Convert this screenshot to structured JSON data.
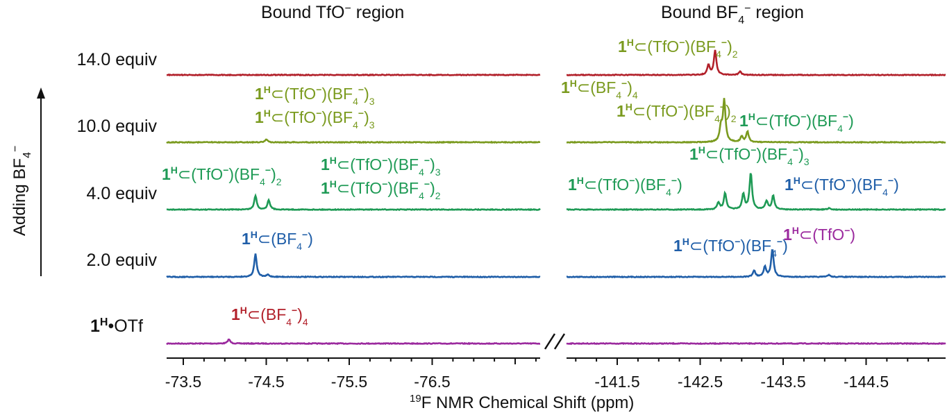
{
  "chart_data": {
    "type": "line",
    "title": "",
    "xlabel": "19F NMR Chemical Shift (ppm)",
    "xlabel_parts": {
      "sup": "19",
      "text": "F NMR Chemical Shift (ppm)"
    },
    "ylabel": "Adding BF4−",
    "ylabel_parts": {
      "text": "Adding BF",
      "sub": "4",
      "sup": "−"
    },
    "axis_break": true,
    "x_reversed": true,
    "panels": [
      {
        "name": "Bound TfO⁻ region",
        "title_parts": {
          "text": "Bound TfO",
          "sup": "−",
          "after": " region"
        },
        "xlim": [
          -72.8,
          -77.8
        ],
        "ticks": [
          -73.5,
          -74.5,
          -75.5,
          -76.5
        ],
        "tick_labels": [
          "-73.5",
          "-74.5",
          "-75.5",
          "-76.5"
        ]
      },
      {
        "name": "Bound BF₄⁻ region",
        "title_parts": {
          "text": "Bound BF",
          "sub": "4",
          "sup": "−",
          "after": " region"
        },
        "xlim": [
          -140.8,
          -145.0
        ],
        "ticks": [
          -141.5,
          -142.5,
          -143.5,
          -144.5
        ],
        "tick_labels": [
          "-141.5",
          "-142.5",
          "-143.5",
          "-144.5"
        ]
      }
    ],
    "series": [
      {
        "name": "1H•OTf",
        "label_parts": {
          "bold": "1",
          "sup": "H",
          "text": "•OTf"
        },
        "color": "#9b2a9e",
        "peaks": [
          {
            "panel": 0,
            "x": -74.05,
            "height": 0.06
          },
          {
            "panel": 1,
            "x": -141.0,
            "height": 0.0
          }
        ]
      },
      {
        "name": "2.0 equiv",
        "color": "#1f5ea8",
        "peaks": [
          {
            "panel": 0,
            "x": -74.37,
            "height": 0.33
          },
          {
            "panel": 0,
            "x": -74.52,
            "height": 0.03
          },
          {
            "panel": 1,
            "x": -143.15,
            "height": 0.09
          },
          {
            "panel": 1,
            "x": -143.28,
            "height": 0.14
          },
          {
            "panel": 1,
            "x": -143.37,
            "height": 0.4
          },
          {
            "panel": 1,
            "x": -144.05,
            "height": 0.03
          }
        ]
      },
      {
        "name": "4.0 equiv",
        "color": "#1e9a55",
        "peaks": [
          {
            "panel": 0,
            "x": -74.37,
            "height": 0.2
          },
          {
            "panel": 0,
            "x": -74.53,
            "height": 0.14
          },
          {
            "panel": 1,
            "x": -142.72,
            "height": 0.1
          },
          {
            "panel": 1,
            "x": -142.8,
            "height": 0.24
          },
          {
            "panel": 1,
            "x": -143.02,
            "height": 0.22
          },
          {
            "panel": 1,
            "x": -143.11,
            "height": 0.53
          },
          {
            "panel": 1,
            "x": -143.3,
            "height": 0.12
          },
          {
            "panel": 1,
            "x": -143.38,
            "height": 0.2
          },
          {
            "panel": 1,
            "x": -144.05,
            "height": 0.02
          }
        ]
      },
      {
        "name": "10.0 equiv",
        "color": "#7a9a1e",
        "peaks": [
          {
            "panel": 0,
            "x": -74.5,
            "height": 0.04
          },
          {
            "panel": 1,
            "x": -142.75,
            "height": 0.21
          },
          {
            "panel": 1,
            "x": -142.79,
            "height": 0.6
          },
          {
            "panel": 1,
            "x": -143.0,
            "height": 0.08
          },
          {
            "panel": 1,
            "x": -143.07,
            "height": 0.15
          }
        ]
      },
      {
        "name": "14.0 equiv",
        "color": "#b2202a",
        "peaks": [
          {
            "panel": 1,
            "x": -142.6,
            "height": 0.14
          },
          {
            "panel": 1,
            "x": -142.68,
            "height": 0.35
          },
          {
            "panel": 1,
            "x": -142.98,
            "height": 0.05
          }
        ]
      }
    ],
    "annotations": [
      {
        "series": 4,
        "panel": 1,
        "x": -142.32,
        "text": "1H⊂(BF4−)4",
        "parts": [
          [
            "b",
            "1"
          ],
          [
            "sup",
            "H"
          ],
          [
            "t",
            "⊂(BF"
          ],
          [
            "sub",
            "4"
          ],
          [
            "sup",
            "−"
          ],
          [
            "t",
            ")"
          ],
          [
            "sub",
            "4"
          ]
        ]
      },
      {
        "series": 3,
        "panel": 0,
        "x": -74.05,
        "text": "1H⊂(TfO−)(BF4−)2",
        "parts": [
          [
            "b",
            "1"
          ],
          [
            "sup",
            "H"
          ],
          [
            "t",
            "⊂(TfO"
          ],
          [
            "sup",
            "−"
          ],
          [
            "t",
            ")(BF"
          ],
          [
            "sub",
            "4"
          ],
          [
            "sup",
            "−"
          ],
          [
            "t",
            ")"
          ],
          [
            "sub",
            "2"
          ]
        ]
      },
      {
        "series": 3,
        "panel": 0,
        "x": -74.05,
        "text": "1H⊂(TfO−)(BF4−)3",
        "parts": [
          [
            "b",
            "1"
          ],
          [
            "sup",
            "H"
          ],
          [
            "t",
            "⊂(TfO"
          ],
          [
            "sup",
            "−"
          ],
          [
            "t",
            ")(BF"
          ],
          [
            "sub",
            "4"
          ],
          [
            "sup",
            "−"
          ],
          [
            "t",
            ")"
          ],
          [
            "sub",
            "3"
          ]
        ]
      },
      {
        "series": 3,
        "panel": 1,
        "x": -142.0,
        "text": "1H⊂(TfO−)(BF4−)3",
        "parts": [
          [
            "b",
            "1"
          ],
          [
            "sup",
            "H"
          ],
          [
            "t",
            "⊂(TfO"
          ],
          [
            "sup",
            "−"
          ],
          [
            "t",
            ")(BF"
          ],
          [
            "sub",
            "4"
          ],
          [
            "sup",
            "−"
          ],
          [
            "t",
            ")"
          ],
          [
            "sub",
            "3"
          ]
        ]
      },
      {
        "series": 3,
        "panel": 1,
        "x": -142.38,
        "text": "1H⊂(BF4−)4",
        "parts": [
          [
            "b",
            "1"
          ],
          [
            "sup",
            "H"
          ],
          [
            "t",
            "⊂(BF"
          ],
          [
            "sub",
            "4"
          ],
          [
            "sup",
            "−"
          ],
          [
            "t",
            ")"
          ],
          [
            "sub",
            "4"
          ]
        ]
      },
      {
        "series": 3,
        "panel": 1,
        "x": -143.55,
        "text": "1H⊂(TfO−)(BF4−)2",
        "parts": [
          [
            "b",
            "1"
          ],
          [
            "sup",
            "H"
          ],
          [
            "t",
            "⊂(TfO"
          ],
          [
            "sup",
            "−"
          ],
          [
            "t",
            ")(BF"
          ],
          [
            "sub",
            "4"
          ],
          [
            "sup",
            "−"
          ],
          [
            "t",
            ")"
          ],
          [
            "sub",
            "2"
          ]
        ]
      },
      {
        "series": 2,
        "panel": 0,
        "x": -73.6,
        "text": "1H⊂(TfO−)(BF4−)",
        "parts": [
          [
            "b",
            "1"
          ],
          [
            "sup",
            "H"
          ],
          [
            "t",
            "⊂(TfO"
          ],
          [
            "sup",
            "−"
          ],
          [
            "t",
            ")(BF"
          ],
          [
            "sub",
            "4"
          ],
          [
            "sup",
            "−"
          ],
          [
            "t",
            ")"
          ]
        ]
      },
      {
        "series": 2,
        "panel": 0,
        "x": -75.3,
        "text": "1H⊂(TfO−)(BF4−)2",
        "parts": [
          [
            "b",
            "1"
          ],
          [
            "sup",
            "H"
          ],
          [
            "t",
            "⊂(TfO"
          ],
          [
            "sup",
            "−"
          ],
          [
            "t",
            ")(BF"
          ],
          [
            "sub",
            "4"
          ],
          [
            "sup",
            "−"
          ],
          [
            "t",
            ")"
          ],
          [
            "sub",
            "2"
          ]
        ]
      },
      {
        "series": 2,
        "panel": 0,
        "x": -75.3,
        "text": "1H⊂(TfO−)(BF4−)3",
        "parts": [
          [
            "b",
            "1"
          ],
          [
            "sup",
            "H"
          ],
          [
            "t",
            "⊂(TfO"
          ],
          [
            "sup",
            "−"
          ],
          [
            "t",
            ")(BF"
          ],
          [
            "sub",
            "4"
          ],
          [
            "sup",
            "−"
          ],
          [
            "t",
            ")"
          ],
          [
            "sub",
            "3"
          ]
        ]
      },
      {
        "series": 2,
        "panel": 1,
        "x": -143.1,
        "text": "1H⊂(TfO−)(BF4−)2",
        "parts": [
          [
            "b",
            "1"
          ],
          [
            "sup",
            "H"
          ],
          [
            "t",
            "⊂(TfO"
          ],
          [
            "sup",
            "−"
          ],
          [
            "t",
            ")(BF"
          ],
          [
            "sub",
            "4"
          ],
          [
            "sup",
            "−"
          ],
          [
            "t",
            ")"
          ],
          [
            "sub",
            "2"
          ]
        ]
      },
      {
        "series": 2,
        "panel": 1,
        "x": -142.0,
        "text": "1H⊂(TfO−)(BF4−)3",
        "parts": [
          [
            "b",
            "1"
          ],
          [
            "sup",
            "H"
          ],
          [
            "t",
            "⊂(TfO"
          ],
          [
            "sup",
            "−"
          ],
          [
            "t",
            ")(BF"
          ],
          [
            "sub",
            "4"
          ],
          [
            "sup",
            "−"
          ],
          [
            "t",
            ")"
          ],
          [
            "sub",
            "3"
          ]
        ]
      },
      {
        "series": 2,
        "panel": 1,
        "x": -144.08,
        "text": "1H⊂(TfO−)(BF4−)",
        "parts": [
          [
            "b",
            "1"
          ],
          [
            "sup",
            "H"
          ],
          [
            "t",
            "⊂(TfO"
          ],
          [
            "sup",
            "−"
          ],
          [
            "t",
            ")(BF"
          ],
          [
            "sub",
            "4"
          ],
          [
            "sup",
            "−"
          ],
          [
            "t",
            ")"
          ]
        ]
      },
      {
        "series": 1,
        "panel": 0,
        "x": -74.35,
        "text": "1H⊂(TfO−)(BF4−)",
        "parts": [
          [
            "b",
            "1"
          ],
          [
            "sup",
            "H"
          ],
          [
            "t",
            "⊂(TfO"
          ],
          [
            "sup",
            "−"
          ],
          [
            "t",
            ")(BF"
          ],
          [
            "sub",
            "4"
          ],
          [
            "sup",
            "−"
          ],
          [
            "t",
            ")"
          ]
        ]
      },
      {
        "series": 1,
        "panel": 1,
        "x": -142.88,
        "text": "1H⊂(BF4−)",
        "parts": [
          [
            "b",
            "1"
          ],
          [
            "sup",
            "H"
          ],
          [
            "t",
            "⊂(BF"
          ],
          [
            "sub",
            "4"
          ],
          [
            "sup",
            "−"
          ],
          [
            "t",
            ")"
          ]
        ]
      },
      {
        "series": 1,
        "panel": 1,
        "x": -144.12,
        "text": "1H⊂(TfO−)(BF4−)",
        "parts": [
          [
            "b",
            "1"
          ],
          [
            "sup",
            "H"
          ],
          [
            "t",
            "⊂(TfO"
          ],
          [
            "sup",
            "−"
          ],
          [
            "t",
            ")(BF"
          ],
          [
            "sub",
            "4"
          ],
          [
            "sup",
            "−"
          ],
          [
            "t",
            ")"
          ]
        ]
      },
      {
        "series": 0,
        "panel": 0,
        "x": -73.75,
        "text": "1H⊂(TfO−)",
        "parts": [
          [
            "b",
            "1"
          ],
          [
            "sup",
            "H"
          ],
          [
            "t",
            "⊂(TfO"
          ],
          [
            "sup",
            "−"
          ],
          [
            "t",
            ")"
          ]
        ]
      }
    ]
  }
}
